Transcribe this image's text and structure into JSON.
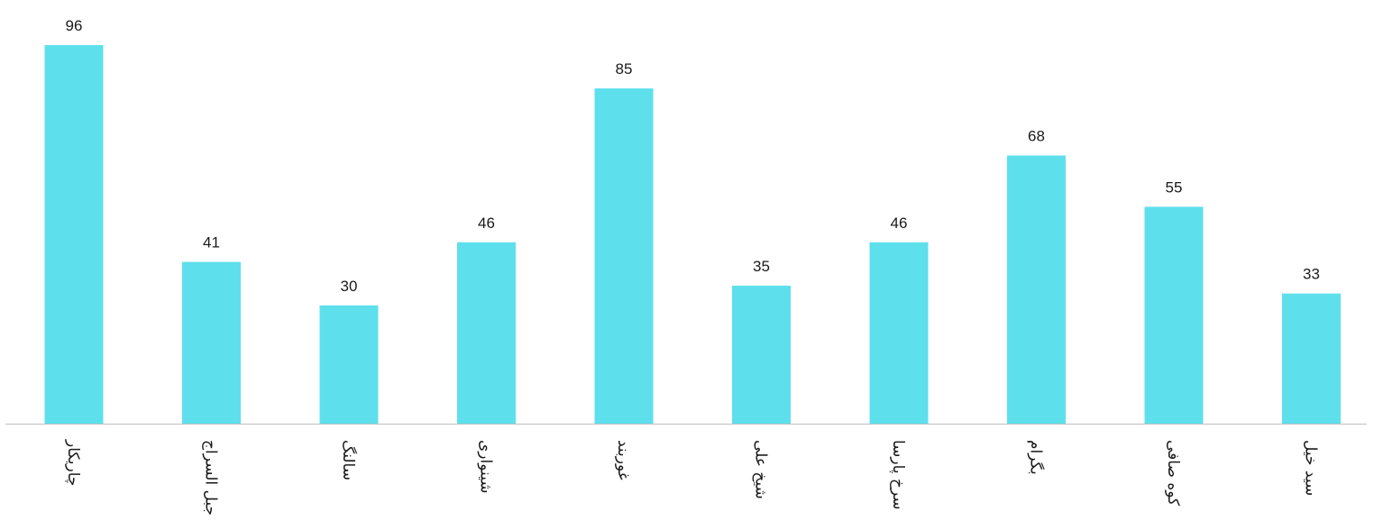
{
  "chart_data": {
    "type": "bar",
    "title": "",
    "xlabel": "",
    "ylabel": "",
    "categories": [
      "چاریکار",
      "جبل السراج",
      "سالنگ",
      "شینواری",
      "غوربند",
      "شیخ علی",
      "سرخ پارسا",
      "بگرام",
      "کوه صافی",
      "سید خیل"
    ],
    "values": [
      96,
      41,
      30,
      46,
      85,
      35,
      46,
      68,
      55,
      33
    ],
    "ylim": [
      0,
      96
    ],
    "grid": false,
    "legend": "none",
    "bar_color": "#5ee0ec",
    "axis_color": "#bfbfbf",
    "data_labels": true
  }
}
